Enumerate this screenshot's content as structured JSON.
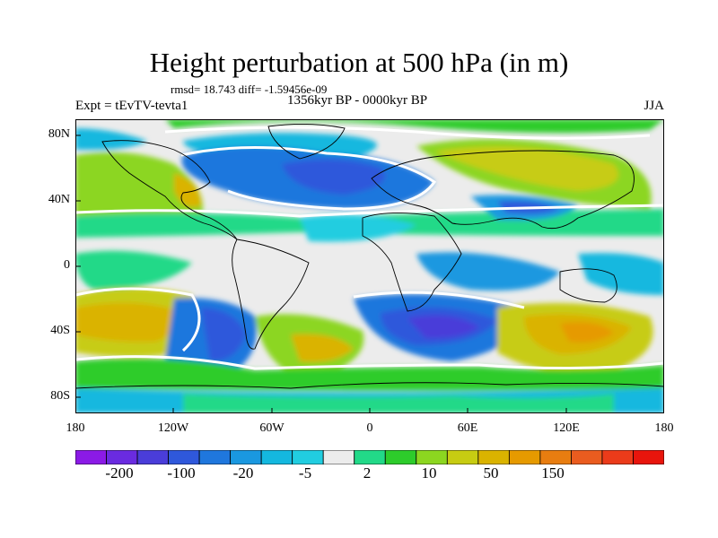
{
  "header": {
    "title": "Height perturbation at 500 hPa (in m)",
    "stats": "rmsd= 18.743  diff= -1.59456e-09",
    "period": "1356kyr BP - 0000kyr BP",
    "experiment": "Expt = tEvTV-tevta1",
    "season": "JJA"
  },
  "map": {
    "projection": "cylindrical equidistant",
    "lon_range": [
      -180,
      180
    ],
    "lat_range": [
      -90,
      90
    ],
    "lat_labels": [
      "80N",
      "40N",
      "0",
      "40S",
      "80S"
    ],
    "lon_labels": [
      "180",
      "120W",
      "60W",
      "0",
      "60E",
      "120E",
      "180"
    ],
    "features": "filled contours with coastline overlay; zero contour highlighted in white"
  },
  "colorbar": {
    "labels": [
      "-200",
      "-100",
      "-20",
      "-5",
      "2",
      "10",
      "50",
      "150"
    ],
    "colors": [
      "#8b1ae6",
      "#6a2be0",
      "#4a3dd9",
      "#2f58db",
      "#1f77dd",
      "#1a98e0",
      "#14b8df",
      "#21cde0",
      "#ececec",
      "#22d988",
      "#2dcc2b",
      "#8cd620",
      "#c7cc12",
      "#dab300",
      "#e69a00",
      "#e87d10",
      "#ea5c1f",
      "#eb3b1a",
      "#e8150c"
    ]
  }
}
